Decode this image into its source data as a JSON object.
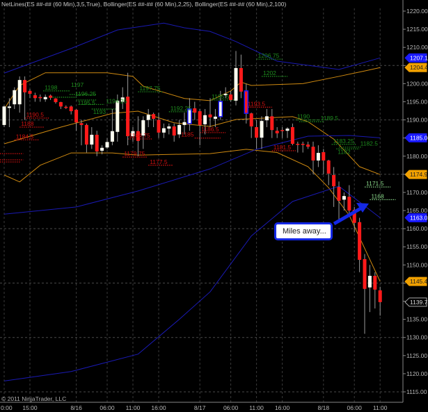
{
  "header": {
    "indicators": "NetLines(ES ##-## (60 Min),3,5,True), Bollinger(ES ##-## (60 Min),2,25), Bollinger(ES ##-## (60 Min),2,100)"
  },
  "footer": {
    "copyright": "© 2011 NinjaTrader, LLC"
  },
  "annotation": {
    "text": "Miles away..."
  },
  "colors": {
    "background": "#000000",
    "up_candle": "#fffff0",
    "down_candle": "#ff1a1a",
    "bb25": "#d08a10",
    "bb100": "#1a1ab4",
    "net_green": "#1e8c1e",
    "net_red": "#d01010",
    "net_light": "#8ad88a",
    "callout": "#1428e6"
  },
  "chart_data": {
    "type": "candlestick",
    "ylim": [
      1115,
      1220
    ],
    "ytick_step": 5,
    "grid": true,
    "x_ticks": [
      {
        "label": "0:00",
        "bar": 0
      },
      {
        "label": "15:00",
        "bar": 5
      },
      {
        "label": "8/16",
        "bar": 14
      },
      {
        "label": "06:00",
        "bar": 20
      },
      {
        "label": "11:00",
        "bar": 25
      },
      {
        "label": "16:00",
        "bar": 30
      },
      {
        "label": "8/17",
        "bar": 38
      },
      {
        "label": "06:00",
        "bar": 44
      },
      {
        "label": "11:00",
        "bar": 49
      },
      {
        "label": "16:00",
        "bar": 54
      },
      {
        "label": "8/18",
        "bar": 62
      },
      {
        "label": "06:00",
        "bar": 68
      },
      {
        "label": "11:00",
        "bar": 73
      }
    ],
    "candles_ohlc": [
      [
        1188.6,
        1194,
        1188,
        1193.7
      ],
      [
        1193.3,
        1196,
        1188,
        1193.7
      ],
      [
        1194.3,
        1199,
        1193,
        1198.2
      ],
      [
        1194.3,
        1202,
        1192,
        1201
      ],
      [
        1201,
        1202,
        1190,
        1197.6
      ],
      [
        1198,
        1198.5,
        1196,
        1197.2
      ],
      [
        1196.8,
        1197.5,
        1195,
        1196
      ],
      [
        1196.3,
        1197,
        1195,
        1196
      ],
      [
        1195.7,
        1197,
        1195,
        1196.3
      ],
      [
        1196.7,
        1197,
        1195.5,
        1196.1
      ],
      [
        1195.9,
        1196,
        1194.5,
        1194.9
      ],
      [
        1194.9,
        1195,
        1193,
        1193.7
      ],
      [
        1193.6,
        1194,
        1193,
        1193.5
      ],
      [
        1193.7,
        1194,
        1191.5,
        1192.4
      ],
      [
        1192.8,
        1193,
        1187,
        1189.3
      ],
      [
        1189.1,
        1190,
        1183,
        1188.6
      ],
      [
        1188.6,
        1189,
        1181,
        1183.2
      ],
      [
        1183.2,
        1188,
        1182,
        1185.9
      ],
      [
        1185.9,
        1187,
        1180,
        1181.3
      ],
      [
        1181.5,
        1183,
        1180.5,
        1182.3
      ],
      [
        1182.4,
        1185,
        1182,
        1183.9
      ],
      [
        1184,
        1193,
        1183,
        1186.9
      ],
      [
        1186.7,
        1197,
        1184,
        1195.3
      ],
      [
        1195,
        1199,
        1193,
        1196.2
      ],
      [
        1196.4,
        1203,
        1183,
        1185.5
      ],
      [
        1185.5,
        1188,
        1184,
        1186.9
      ],
      [
        1186.9,
        1191,
        1180,
        1184.2
      ],
      [
        1185.7,
        1191,
        1182,
        1189.9
      ],
      [
        1190,
        1193,
        1188,
        1191.4
      ],
      [
        1191.6,
        1192,
        1188,
        1190.3
      ],
      [
        1190,
        1192,
        1185,
        1186.5
      ],
      [
        1186.5,
        1189,
        1185,
        1187.7
      ],
      [
        1187.6,
        1189,
        1186,
        1188.2
      ],
      [
        1188.2,
        1189,
        1184,
        1185.7
      ],
      [
        1186,
        1190,
        1185,
        1188.6
      ],
      [
        1188.6,
        1192,
        1186,
        1189.4
      ],
      [
        1189,
        1196,
        1187,
        1193
      ],
      [
        1193.2,
        1195,
        1190,
        1192
      ],
      [
        1192.4,
        1193,
        1183,
        1188.6
      ],
      [
        1188.8,
        1193,
        1186,
        1191.3
      ],
      [
        1191.5,
        1196,
        1188,
        1190.7
      ],
      [
        1190.3,
        1193,
        1188,
        1190.9
      ],
      [
        1190.9,
        1198,
        1190,
        1195.1
      ],
      [
        1196.8,
        1199,
        1196,
        1197.2
      ],
      [
        1197,
        1198,
        1195,
        1195.5
      ],
      [
        1195.3,
        1209,
        1194,
        1204.3
      ],
      [
        1204.3,
        1208,
        1196,
        1197.8
      ],
      [
        1198,
        1200,
        1189,
        1191.8
      ],
      [
        1191.8,
        1192,
        1185,
        1188.2
      ],
      [
        1188,
        1190,
        1182,
        1185.1
      ],
      [
        1185.1,
        1191,
        1182,
        1189.7
      ],
      [
        1189.9,
        1193,
        1188,
        1191
      ],
      [
        1191,
        1193,
        1185,
        1187.2
      ],
      [
        1187,
        1188,
        1185,
        1186.3
      ],
      [
        1187.2,
        1188,
        1185,
        1187
      ],
      [
        1187,
        1188,
        1185,
        1187.6
      ],
      [
        1188,
        1189,
        1183,
        1183.4
      ],
      [
        1183.4,
        1184,
        1181,
        1183.3
      ],
      [
        1183.4,
        1184,
        1181,
        1183.3
      ],
      [
        1183.2,
        1184,
        1182,
        1182.6
      ],
      [
        1182.6,
        1184,
        1175,
        1178.8
      ],
      [
        1178.8,
        1183,
        1177,
        1180.9
      ],
      [
        1181.1,
        1182,
        1175,
        1178.8
      ],
      [
        1178.8,
        1179,
        1172,
        1175.2
      ],
      [
        1174.8,
        1177,
        1166,
        1171.7
      ],
      [
        1171.5,
        1173,
        1162,
        1167.7
      ],
      [
        1168,
        1170,
        1165,
        1169
      ],
      [
        1168.8,
        1172,
        1164,
        1165
      ],
      [
        1165.2,
        1166,
        1159,
        1161.6
      ],
      [
        1161.8,
        1163,
        1148,
        1151.4
      ],
      [
        1151.6,
        1153,
        1131,
        1143.4
      ],
      [
        1143.8,
        1150,
        1137,
        1147
      ],
      [
        1147,
        1148,
        1138,
        1143.2
      ],
      [
        1143,
        1144,
        1136,
        1139.75
      ]
    ],
    "outlined_bars": [
      36,
      42,
      47
    ],
    "series": [
      {
        "key": "bb25_upper",
        "color": "#d08a10",
        "points": [
          [
            0,
            1193
          ],
          [
            3,
            1199.5
          ],
          [
            8,
            1203
          ],
          [
            20,
            1203
          ],
          [
            25,
            1202
          ],
          [
            27,
            1199.3
          ],
          [
            35,
            1195.9
          ],
          [
            40,
            1195.3
          ],
          [
            44,
            1198
          ],
          [
            46,
            1200.4
          ],
          [
            48,
            1199.5
          ],
          [
            58,
            1200
          ],
          [
            65,
            1202
          ],
          [
            70,
            1203.5
          ],
          [
            73,
            1204.44
          ]
        ]
      },
      {
        "key": "bb25_middle",
        "color": "#d08a10",
        "points": [
          [
            0,
            1183.4
          ],
          [
            11,
            1188
          ],
          [
            21,
            1191.8
          ],
          [
            26,
            1192.4
          ],
          [
            33,
            1189.2
          ],
          [
            40,
            1188.2
          ],
          [
            45,
            1190.1
          ],
          [
            56,
            1190.9
          ],
          [
            59,
            1189.5
          ],
          [
            64,
            1184.7
          ],
          [
            69,
            1177.1
          ],
          [
            73,
            1174.94
          ]
        ]
      },
      {
        "key": "bb25_lower",
        "color": "#d08a10",
        "points": [
          [
            0,
            1174.8
          ],
          [
            3,
            1172.9
          ],
          [
            7,
            1177.5
          ],
          [
            13,
            1180.9
          ],
          [
            21,
            1180.9
          ],
          [
            26,
            1180.3
          ],
          [
            33,
            1180.5
          ],
          [
            40,
            1180.7
          ],
          [
            47,
            1181.9
          ],
          [
            53,
            1181
          ],
          [
            59,
            1177.1
          ],
          [
            63,
            1171.3
          ],
          [
            67,
            1163.7
          ],
          [
            73,
            1145.44
          ]
        ]
      },
      {
        "key": "bb100_upper",
        "color": "#1a1ab4",
        "points": [
          [
            0,
            1202.9
          ],
          [
            13,
            1209.7
          ],
          [
            22,
            1214.8
          ],
          [
            31,
            1216.7
          ],
          [
            35,
            1215.4
          ],
          [
            40,
            1214.4
          ],
          [
            45,
            1211.6
          ],
          [
            53,
            1206.2
          ],
          [
            65,
            1203.9
          ],
          [
            73,
            1207.1
          ]
        ]
      },
      {
        "key": "bb100_middle",
        "color": "#1a1ab4",
        "points": [
          [
            0,
            1164
          ],
          [
            14,
            1166
          ],
          [
            26,
            1170.4
          ],
          [
            40,
            1176.5
          ],
          [
            49,
            1181.9
          ],
          [
            59,
            1185.5
          ],
          [
            67,
            1185.7
          ],
          [
            73,
            1185.06
          ]
        ]
      },
      {
        "key": "bb100_lower",
        "color": "#1a1ab4",
        "points": [
          [
            0,
            1118
          ],
          [
            13,
            1120.6
          ],
          [
            26,
            1125.4
          ],
          [
            34,
            1135
          ],
          [
            40,
            1142.6
          ],
          [
            48,
            1158
          ],
          [
            56,
            1167.5
          ],
          [
            65,
            1171.7
          ],
          [
            73,
            1163.02
          ]
        ]
      }
    ],
    "net_lines": [
      {
        "label": "1198",
        "price": 1198,
        "from": 7.6,
        "to": 12.7,
        "color": "green"
      },
      {
        "label": "1196.25",
        "price": 1196.25,
        "from": 9,
        "to": 14,
        "color": "green"
      },
      {
        "label": "1197",
        "price": 1197,
        "from": 12.7,
        "to": 17.8,
        "color": "green"
      },
      {
        "label": "1195.5",
        "price": 1195.5,
        "from": 14,
        "to": 18,
        "color": "green"
      },
      {
        "label": "1194.25",
        "price": 1194.25,
        "from": 15,
        "to": 19.5,
        "color": "green"
      },
      {
        "label": "1193",
        "price": 1193,
        "from": 17,
        "to": 21.8,
        "color": "green"
      },
      {
        "label": "1197.75",
        "price": 1197.75,
        "from": 26,
        "to": 30.7,
        "color": "green"
      },
      {
        "label": "1192.25",
        "price": 1192.25,
        "from": 32,
        "to": 36.8,
        "color": "green"
      },
      {
        "label": "1195.5",
        "price": 1195.5,
        "from": 40,
        "to": 45,
        "color": "green"
      },
      {
        "label": "1206.75",
        "price": 1206.75,
        "from": 49,
        "to": 54,
        "color": "green"
      },
      {
        "label": "1202",
        "price": 1202,
        "from": 50,
        "to": 55,
        "color": "green"
      },
      {
        "label": "1190",
        "price": 1190,
        "from": 56.6,
        "to": 61.4,
        "color": "green"
      },
      {
        "label": "1189.5",
        "price": 1189.5,
        "from": 57.3,
        "to": 62,
        "color": "green"
      },
      {
        "label": "1183.25",
        "price": 1183.25,
        "from": 63.6,
        "to": 68.4,
        "color": "green"
      },
      {
        "label": "1182.5",
        "price": 1182.5,
        "from": 65,
        "to": 69.5,
        "color": "green"
      },
      {
        "label": "1182",
        "price": 1182,
        "from": 64.5,
        "to": 69,
        "color": "green"
      },
      {
        "label": "1190.5",
        "price": 1190.5,
        "from": 4,
        "to": 8.8,
        "color": "red"
      },
      {
        "label": "1188",
        "price": 1188,
        "from": 3,
        "to": 7.7,
        "color": "red"
      },
      {
        "label": "1184.5",
        "price": 1184.5,
        "from": 2,
        "to": 6.8,
        "color": "red"
      },
      {
        "label": "1184.75",
        "price": 1184.75,
        "from": 24,
        "to": 28.8,
        "color": "red"
      },
      {
        "label": "1179.75",
        "price": 1179.75,
        "from": 23,
        "to": 27.8,
        "color": "red"
      },
      {
        "label": "1177.5",
        "price": 1177.5,
        "from": 28,
        "to": 32.8,
        "color": "red"
      },
      {
        "label": "1186.5",
        "price": 1186.5,
        "from": 38,
        "to": 43,
        "color": "red"
      },
      {
        "label": "1185",
        "price": 1185,
        "from": 37,
        "to": 42,
        "color": "red"
      },
      {
        "label": "1193.5",
        "price": 1193.5,
        "from": 47,
        "to": 52,
        "color": "red"
      },
      {
        "label": "1181.5",
        "price": 1181.5,
        "from": 52,
        "to": 56.6,
        "color": "red"
      },
      {
        "label": "",
        "price": 1180.7,
        "from": -1,
        "to": 3.7,
        "color": "red"
      },
      {
        "label": "",
        "price": 1179,
        "from": -1,
        "to": 3.7,
        "color": "red"
      },
      {
        "label": "",
        "price": 1178.4,
        "from": -1,
        "to": 3.2,
        "color": "red"
      },
      {
        "label": "1171.5",
        "price": 1171.5,
        "from": 70,
        "to": 75,
        "color": "light"
      },
      {
        "label": "1168",
        "price": 1168,
        "from": 71,
        "to": 76,
        "color": "light"
      }
    ],
    "price_markers": [
      {
        "label": "1207.10",
        "price": 1207.1,
        "style": "blue"
      },
      {
        "label": "1204.44",
        "price": 1204.44,
        "style": "orange"
      },
      {
        "label": "1185.06",
        "price": 1185.06,
        "style": "blue"
      },
      {
        "label": "1174.94",
        "price": 1174.94,
        "style": "orange"
      },
      {
        "label": "1163.02",
        "price": 1163.02,
        "style": "blue"
      },
      {
        "label": "1145.44",
        "price": 1145.44,
        "style": "orange"
      },
      {
        "label": "1139.75",
        "price": 1139.75,
        "style": "last"
      }
    ]
  }
}
